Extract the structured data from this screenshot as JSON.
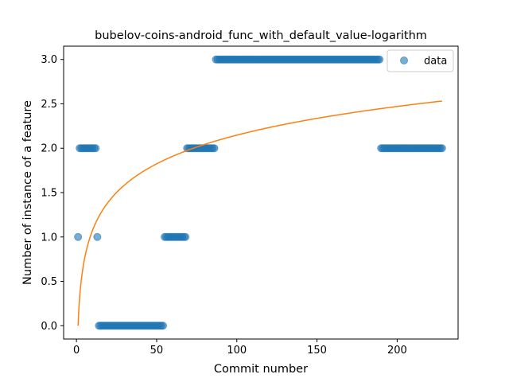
{
  "chart_data": {
    "type": "scatter",
    "title": "bubelov-coins-android_func_with_default_value-logarithm",
    "xlabel": "Commit number",
    "ylabel": "Number of instance of a feature",
    "xlim": [
      -8,
      238
    ],
    "ylim": [
      -0.15,
      3.15
    ],
    "xticks": [
      0,
      50,
      100,
      150,
      200
    ],
    "yticks": [
      0.0,
      0.5,
      1.0,
      1.5,
      2.0,
      2.5,
      3.0
    ],
    "xtick_labels": [
      "0",
      "50",
      "100",
      "150",
      "200"
    ],
    "ytick_labels": [
      "0.0",
      "0.5",
      "1.0",
      "1.5",
      "2.0",
      "2.5",
      "3.0"
    ],
    "legend": {
      "position": "upper right",
      "entries": [
        "data"
      ]
    },
    "series": [
      {
        "name": "data",
        "kind": "scatter",
        "color": "#1f77b4",
        "segments": [
          {
            "x_start": 1,
            "x_end": 1,
            "y": 1
          },
          {
            "x_start": 2,
            "x_end": 12,
            "y": 2
          },
          {
            "x_start": 13,
            "x_end": 13,
            "y": 1
          },
          {
            "x_start": 14,
            "x_end": 54,
            "y": 0
          },
          {
            "x_start": 55,
            "x_end": 68,
            "y": 1
          },
          {
            "x_start": 69,
            "x_end": 86,
            "y": 2
          },
          {
            "x_start": 87,
            "x_end": 189,
            "y": 3
          },
          {
            "x_start": 190,
            "x_end": 228,
            "y": 2
          }
        ]
      },
      {
        "kind": "line",
        "color": "#ff7f0e",
        "model": "logarithmic",
        "fit": {
          "a": 0.4663,
          "b": 0,
          "x_start": 1,
          "x_end": 228
        }
      }
    ]
  }
}
